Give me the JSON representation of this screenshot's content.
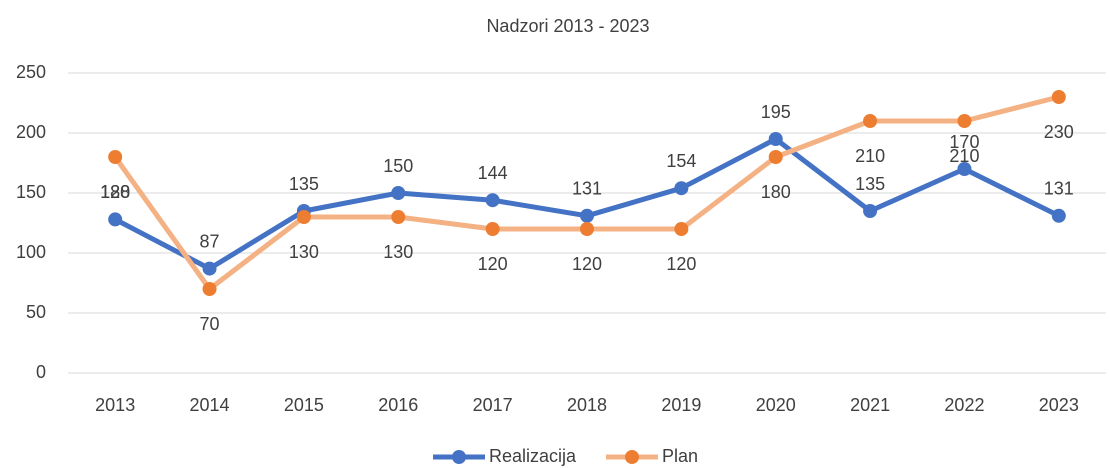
{
  "chart_data": {
    "type": "line",
    "title": "Nadzori 2013 - 2023",
    "categories": [
      "2013",
      "2014",
      "2015",
      "2016",
      "2017",
      "2018",
      "2019",
      "2020",
      "2021",
      "2022",
      "2023"
    ],
    "series": [
      {
        "name": "Realizacija",
        "color": "#4472c4",
        "marker_color": "#4472c4",
        "values": [
          128,
          87,
          135,
          150,
          144,
          131,
          154,
          195,
          135,
          170,
          131
        ]
      },
      {
        "name": "Plan",
        "color": "#f4b183",
        "marker_color": "#ed7d31",
        "values": [
          180,
          70,
          130,
          130,
          120,
          120,
          120,
          180,
          210,
          210,
          230
        ]
      }
    ],
    "ylim": [
      0,
      250
    ],
    "yticks": [
      0,
      50,
      100,
      150,
      200,
      250
    ],
    "grid": true,
    "legend": "bottom"
  }
}
